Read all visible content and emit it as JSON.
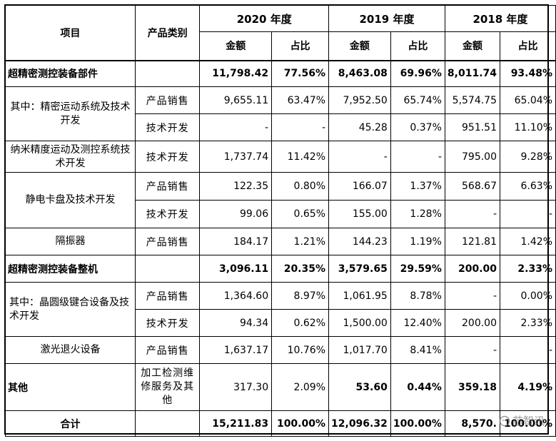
{
  "header": {
    "item": "项目",
    "category": "产品类别",
    "years": [
      "2020 年度",
      "2019 年度",
      "2018 年度"
    ],
    "amount": "金额",
    "ratio": "占比"
  },
  "rows": [
    {
      "label": "超精密测控装备部件",
      "type": "",
      "v": [
        "11,798.42",
        "77.56%",
        "8,463.08",
        "69.96%",
        "8,011.74",
        "93.48%"
      ]
    },
    {
      "label": "其中：精密运动系统及技术开发",
      "type": "产品销售",
      "v": [
        "9,655.11",
        "63.47%",
        "7,952.50",
        "65.74%",
        "5,574.75",
        "65.04%"
      ]
    },
    {
      "label": "",
      "type": "技术开发",
      "v": [
        "-",
        "-",
        "45.28",
        "0.37%",
        "951.51",
        "11.10%"
      ]
    },
    {
      "label": "纳米精度运动及测控系统技术开发",
      "type": "技术开发",
      "v": [
        "1,737.74",
        "11.42%",
        "-",
        "-",
        "795.00",
        "9.28%"
      ]
    },
    {
      "label": "静电卡盘及技术开发",
      "type": "产品销售",
      "v": [
        "122.35",
        "0.80%",
        "166.07",
        "1.37%",
        "568.67",
        "6.63%"
      ]
    },
    {
      "label": "",
      "type": "技术开发",
      "v": [
        "99.06",
        "0.65%",
        "155.00",
        "1.28%",
        "-",
        "-"
      ]
    },
    {
      "label": "隔振器",
      "type": "产品销售",
      "v": [
        "184.17",
        "1.21%",
        "144.23",
        "1.19%",
        "121.81",
        "1.42%"
      ]
    },
    {
      "label": "超精密测控装备整机",
      "type": "",
      "v": [
        "3,096.11",
        "20.35%",
        "3,579.65",
        "29.59%",
        "200.00",
        "2.33%"
      ]
    },
    {
      "label": "其中：晶圆级键合设备及技术开发",
      "type": "产品销售",
      "v": [
        "1,364.60",
        "8.97%",
        "1,061.95",
        "8.78%",
        "-",
        "0.00%"
      ]
    },
    {
      "label": "",
      "type": "技术开发",
      "v": [
        "94.34",
        "0.62%",
        "1,500.00",
        "12.40%",
        "200.00",
        "2.33%"
      ]
    },
    {
      "label": "激光退火设备",
      "type": "产品销售",
      "v": [
        "1,637.17",
        "10.76%",
        "1,017.70",
        "8.41%",
        "-",
        "-"
      ]
    },
    {
      "label": "其他",
      "type": "加工检测维修服务及其他",
      "v": [
        "317.30",
        "2.09%",
        "53.60",
        "0.44%",
        "359.18",
        "4.19%"
      ]
    },
    {
      "label": "合计",
      "type": "",
      "v": [
        "15,211.83",
        "100.00%",
        "12,096.32",
        "100.00%",
        "8,570.",
        "100.00%"
      ]
    }
  ],
  "watermark": "芯智讯"
}
